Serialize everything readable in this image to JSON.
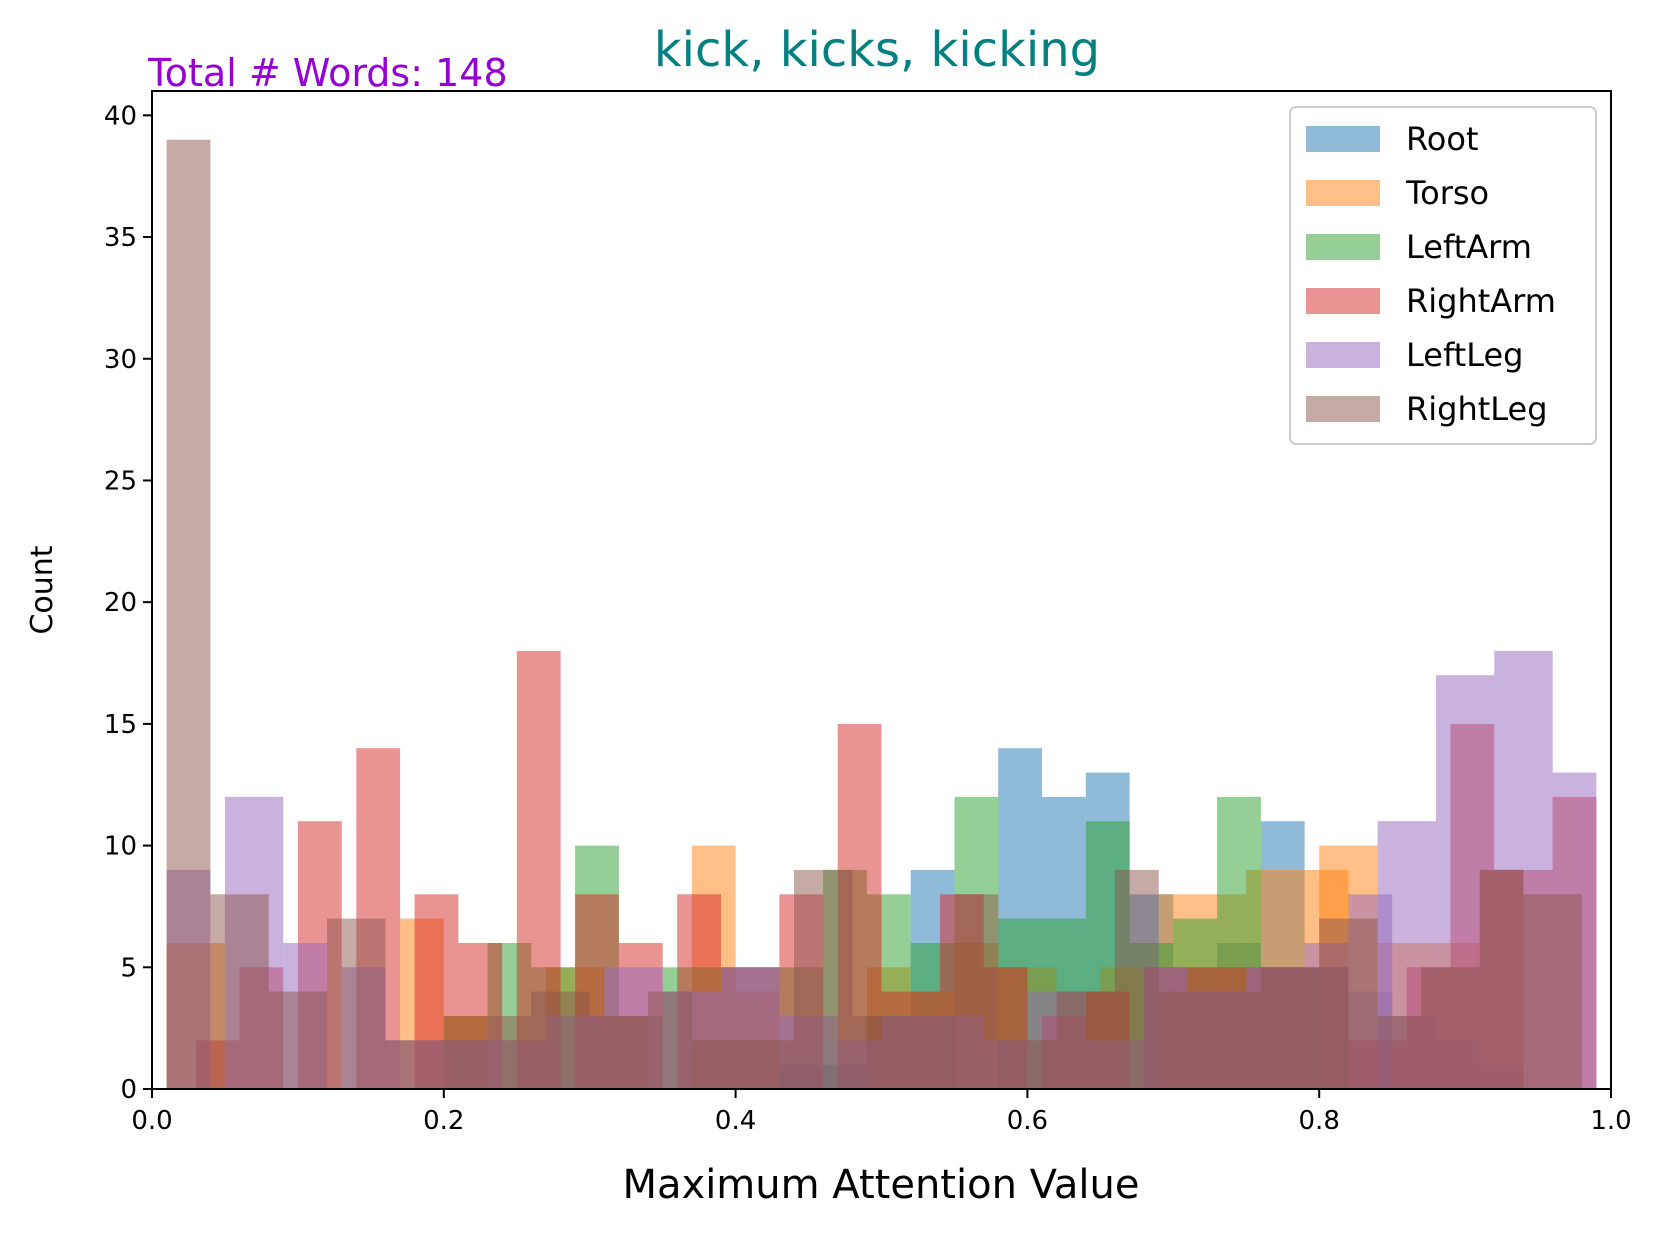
{
  "chart_data": {
    "type": "bar",
    "title": "kick, kicks, kicking",
    "annotation": "Total # Words: 148",
    "xlabel": "Maximum Attention Value",
    "ylabel": "Count",
    "xlim": [
      0.0,
      1.0
    ],
    "ylim": [
      0,
      41
    ],
    "xticks": [
      0.0,
      0.2,
      0.4,
      0.6,
      0.8,
      1.0
    ],
    "xtick_labels": [
      "0.0",
      "0.2",
      "0.4",
      "0.6",
      "0.8",
      "1.0"
    ],
    "yticks": [
      0,
      5,
      10,
      15,
      20,
      25,
      30,
      35,
      40
    ],
    "ytick_labels": [
      "0",
      "5",
      "10",
      "15",
      "20",
      "25",
      "30",
      "35",
      "40"
    ],
    "legend_position": "top-right",
    "grid": false,
    "series": [
      {
        "name": "Root",
        "color": "#1f77b4",
        "bins": [
          [
            0.43,
            0.46,
            1
          ],
          [
            0.46,
            0.49,
            1
          ],
          [
            0.49,
            0.52,
            3
          ],
          [
            0.52,
            0.55,
            9
          ],
          [
            0.58,
            0.61,
            14
          ],
          [
            0.61,
            0.64,
            12
          ],
          [
            0.64,
            0.67,
            13
          ],
          [
            0.67,
            0.7,
            8
          ],
          [
            0.7,
            0.73,
            5
          ],
          [
            0.73,
            0.76,
            6
          ],
          [
            0.76,
            0.79,
            11
          ],
          [
            0.79,
            0.82,
            5
          ],
          [
            0.82,
            0.85,
            4
          ],
          [
            0.85,
            0.88,
            3
          ],
          [
            0.88,
            0.91,
            2
          ],
          [
            0.91,
            0.94,
            1
          ]
        ]
      },
      {
        "name": "Torso",
        "color": "#ff7f0e",
        "bins": [
          [
            0.01,
            0.05,
            6
          ],
          [
            0.17,
            0.2,
            7
          ],
          [
            0.2,
            0.23,
            3
          ],
          [
            0.24,
            0.27,
            2
          ],
          [
            0.27,
            0.31,
            5
          ],
          [
            0.31,
            0.34,
            3
          ],
          [
            0.37,
            0.4,
            10
          ],
          [
            0.4,
            0.43,
            4
          ],
          [
            0.49,
            0.52,
            5
          ],
          [
            0.52,
            0.55,
            4
          ],
          [
            0.55,
            0.58,
            6
          ],
          [
            0.58,
            0.62,
            5
          ],
          [
            0.62,
            0.65,
            4
          ],
          [
            0.65,
            0.68,
            5
          ],
          [
            0.69,
            0.72,
            8
          ],
          [
            0.72,
            0.75,
            8
          ],
          [
            0.75,
            0.79,
            9
          ],
          [
            0.79,
            0.82,
            9
          ],
          [
            0.8,
            0.84,
            10
          ],
          [
            0.84,
            0.87,
            6
          ],
          [
            0.87,
            0.91,
            6
          ],
          [
            0.91,
            0.94,
            9
          ]
        ]
      },
      {
        "name": "LeftArm",
        "color": "#2ca02c",
        "bins": [
          [
            0.2,
            0.23,
            3
          ],
          [
            0.23,
            0.26,
            6
          ],
          [
            0.26,
            0.29,
            5
          ],
          [
            0.29,
            0.32,
            10
          ],
          [
            0.32,
            0.35,
            3
          ],
          [
            0.35,
            0.38,
            5
          ],
          [
            0.38,
            0.42,
            5
          ],
          [
            0.42,
            0.46,
            5
          ],
          [
            0.46,
            0.49,
            9
          ],
          [
            0.49,
            0.52,
            8
          ],
          [
            0.52,
            0.55,
            6
          ],
          [
            0.55,
            0.58,
            12
          ],
          [
            0.58,
            0.61,
            7
          ],
          [
            0.61,
            0.64,
            7
          ],
          [
            0.64,
            0.67,
            11
          ],
          [
            0.67,
            0.7,
            6
          ],
          [
            0.7,
            0.73,
            7
          ],
          [
            0.73,
            0.76,
            12
          ],
          [
            0.76,
            0.79,
            5
          ],
          [
            0.79,
            0.82,
            5
          ]
        ]
      },
      {
        "name": "RightArm",
        "color": "#d62728",
        "bins": [
          [
            0.03,
            0.06,
            2
          ],
          [
            0.06,
            0.09,
            5
          ],
          [
            0.1,
            0.13,
            11
          ],
          [
            0.14,
            0.17,
            14
          ],
          [
            0.18,
            0.21,
            8
          ],
          [
            0.21,
            0.24,
            6
          ],
          [
            0.25,
            0.28,
            18
          ],
          [
            0.29,
            0.32,
            8
          ],
          [
            0.32,
            0.35,
            6
          ],
          [
            0.36,
            0.39,
            8
          ],
          [
            0.39,
            0.43,
            5
          ],
          [
            0.43,
            0.46,
            8
          ],
          [
            0.47,
            0.5,
            15
          ],
          [
            0.5,
            0.54,
            4
          ],
          [
            0.54,
            0.57,
            8
          ],
          [
            0.57,
            0.6,
            5
          ],
          [
            0.61,
            0.64,
            3
          ],
          [
            0.64,
            0.67,
            4
          ],
          [
            0.68,
            0.71,
            5
          ],
          [
            0.71,
            0.75,
            5
          ],
          [
            0.75,
            0.79,
            5
          ],
          [
            0.79,
            0.82,
            5
          ],
          [
            0.82,
            0.86,
            2
          ],
          [
            0.86,
            0.89,
            5
          ],
          [
            0.89,
            0.92,
            15
          ],
          [
            0.92,
            0.96,
            9
          ],
          [
            0.96,
            0.99,
            12
          ]
        ]
      },
      {
        "name": "LeftLeg",
        "color": "#9467bd",
        "bins": [
          [
            0.01,
            0.04,
            9
          ],
          [
            0.05,
            0.09,
            12
          ],
          [
            0.09,
            0.12,
            6
          ],
          [
            0.13,
            0.16,
            5
          ],
          [
            0.16,
            0.19,
            2
          ],
          [
            0.19,
            0.23,
            2
          ],
          [
            0.23,
            0.27,
            2
          ],
          [
            0.27,
            0.31,
            3
          ],
          [
            0.31,
            0.35,
            5
          ],
          [
            0.35,
            0.39,
            4
          ],
          [
            0.39,
            0.43,
            5
          ],
          [
            0.43,
            0.47,
            3
          ],
          [
            0.47,
            0.5,
            2
          ],
          [
            0.5,
            0.54,
            3
          ],
          [
            0.54,
            0.57,
            3
          ],
          [
            0.57,
            0.6,
            2
          ],
          [
            0.6,
            0.64,
            4
          ],
          [
            0.64,
            0.68,
            2
          ],
          [
            0.68,
            0.71,
            5
          ],
          [
            0.71,
            0.75,
            4
          ],
          [
            0.75,
            0.79,
            5
          ],
          [
            0.79,
            0.82,
            6
          ],
          [
            0.82,
            0.85,
            8
          ],
          [
            0.84,
            0.88,
            11
          ],
          [
            0.88,
            0.92,
            17
          ],
          [
            0.92,
            0.96,
            18
          ],
          [
            0.96,
            0.99,
            13
          ]
        ]
      },
      {
        "name": "RightLeg",
        "color": "#8c564b",
        "bins": [
          [
            0.01,
            0.04,
            39
          ],
          [
            0.04,
            0.08,
            8
          ],
          [
            0.08,
            0.12,
            4
          ],
          [
            0.12,
            0.16,
            7
          ],
          [
            0.16,
            0.19,
            2
          ],
          [
            0.19,
            0.23,
            2
          ],
          [
            0.23,
            0.26,
            3
          ],
          [
            0.26,
            0.3,
            4
          ],
          [
            0.3,
            0.34,
            3
          ],
          [
            0.34,
            0.37,
            4
          ],
          [
            0.37,
            0.41,
            2
          ],
          [
            0.41,
            0.44,
            2
          ],
          [
            0.44,
            0.48,
            9
          ],
          [
            0.48,
            0.51,
            3
          ],
          [
            0.51,
            0.55,
            3
          ],
          [
            0.55,
            0.58,
            8
          ],
          [
            0.58,
            0.62,
            2
          ],
          [
            0.62,
            0.66,
            4
          ],
          [
            0.66,
            0.69,
            9
          ],
          [
            0.69,
            0.73,
            4
          ],
          [
            0.73,
            0.76,
            4
          ],
          [
            0.76,
            0.8,
            5
          ],
          [
            0.8,
            0.84,
            7
          ],
          [
            0.84,
            0.87,
            3
          ],
          [
            0.87,
            0.91,
            5
          ],
          [
            0.91,
            0.94,
            9
          ],
          [
            0.94,
            0.98,
            8
          ]
        ]
      }
    ]
  },
  "colors": {
    "title": "#008080",
    "annotation": "#9400d3"
  }
}
